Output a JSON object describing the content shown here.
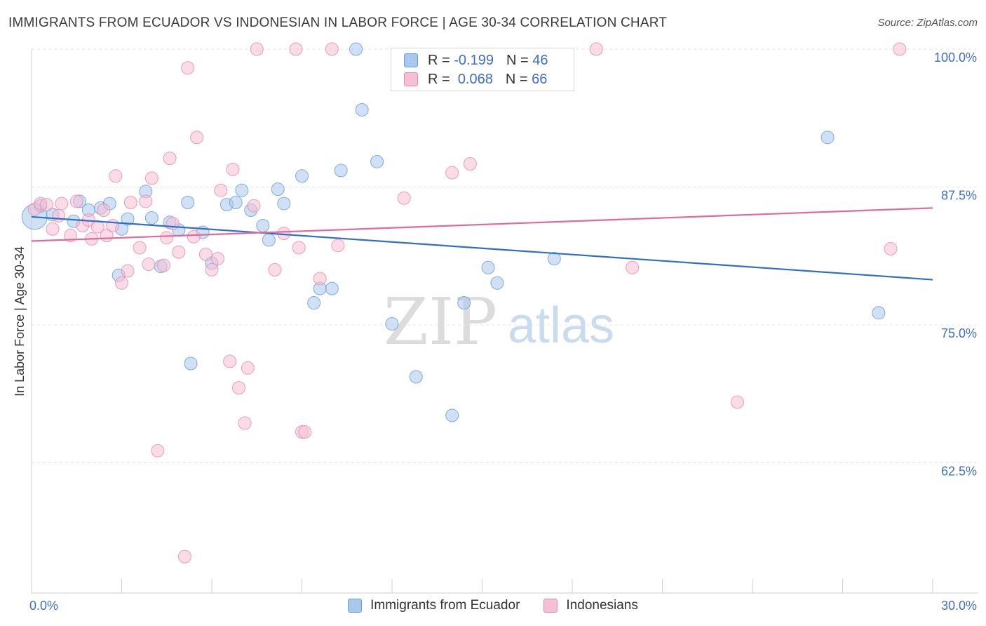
{
  "header": {
    "title": "IMMIGRANTS FROM ECUADOR VS INDONESIAN IN LABOR FORCE | AGE 30-34 CORRELATION CHART",
    "source": "Source: ZipAtlas.com"
  },
  "watermark": {
    "zip": "ZIP",
    "atlas": "atlas"
  },
  "legend_top": {
    "rows": [
      {
        "r_label": "R =",
        "r_value": "-0.199",
        "n_label": "N =",
        "n_value": "46",
        "color": "#a9c8ee",
        "stroke": "#6a9fd8"
      },
      {
        "r_label": "R =",
        "r_value": "0.068",
        "n_label": "N =",
        "n_value": "66",
        "color": "#f6bfd3",
        "stroke": "#e78cab"
      }
    ]
  },
  "legend_bottom": {
    "items": [
      {
        "label": "Immigrants from Ecuador",
        "color": "#a9c8ee",
        "stroke": "#6a9fd8"
      },
      {
        "label": "Indonesians",
        "color": "#f6bfd3",
        "stroke": "#e78cab"
      }
    ]
  },
  "chart_data": {
    "type": "scatter",
    "title": "IMMIGRANTS FROM ECUADOR VS INDONESIAN IN LABOR FORCE | AGE 30-34 CORRELATION CHART",
    "xlabel": "",
    "ylabel": "In Labor Force | Age 30-34",
    "xlim": [
      0,
      30
    ],
    "ylim": [
      50.7,
      100
    ],
    "x_tick_labels": [
      "0.0%",
      "30.0%"
    ],
    "y_ticks": [
      62.5,
      75.0,
      87.5,
      100.0
    ],
    "y_tick_labels": [
      "62.5%",
      "75.0%",
      "87.5%",
      "100.0%"
    ],
    "grid": "horizontal-dashed",
    "legend_position": "top-center",
    "colors": {
      "ecuador": "#6a9fd8",
      "ecuador_fill": "#a9c8ee",
      "indonesian": "#e78cab",
      "indonesian_fill": "#f6bfd3",
      "ecuador_line": "#2f6fcc",
      "indonesian_line": "#e06a9a",
      "axis_text": "#3d6fc6"
    },
    "series": [
      {
        "name": "Immigrants from Ecuador",
        "trend": [
          [
            0,
            84.8
          ],
          [
            30,
            79.1
          ]
        ],
        "points": [
          [
            0.1,
            84.8,
            18
          ],
          [
            0.3,
            85.8,
            9
          ],
          [
            0.7,
            85.0,
            9
          ],
          [
            1.4,
            84.4,
            9
          ],
          [
            1.6,
            86.2,
            9
          ],
          [
            1.9,
            85.4,
            9
          ],
          [
            2.3,
            85.6,
            9
          ],
          [
            2.6,
            86.0,
            9
          ],
          [
            3.2,
            84.6,
            9
          ],
          [
            3.0,
            83.7,
            9
          ],
          [
            2.9,
            79.5,
            9
          ],
          [
            3.8,
            87.1,
            9
          ],
          [
            4.0,
            84.7,
            9
          ],
          [
            4.3,
            80.3,
            9
          ],
          [
            4.6,
            84.3,
            9
          ],
          [
            4.9,
            83.6,
            9
          ],
          [
            5.2,
            86.1,
            9
          ],
          [
            5.3,
            71.5,
            9
          ],
          [
            5.7,
            83.4,
            9
          ],
          [
            6.0,
            80.6,
            9
          ],
          [
            6.5,
            85.9,
            9
          ],
          [
            6.8,
            86.1,
            9
          ],
          [
            7.0,
            87.2,
            9
          ],
          [
            7.3,
            85.4,
            9
          ],
          [
            7.7,
            84.0,
            9
          ],
          [
            7.9,
            82.7,
            9
          ],
          [
            8.2,
            87.3,
            9
          ],
          [
            8.4,
            86.0,
            9
          ],
          [
            9.0,
            88.5,
            9
          ],
          [
            9.4,
            77.0,
            9
          ],
          [
            9.6,
            78.3,
            9
          ],
          [
            10.0,
            78.3,
            9
          ],
          [
            10.3,
            89.0,
            9
          ],
          [
            10.8,
            100.0,
            9
          ],
          [
            11.0,
            94.5,
            9
          ],
          [
            11.5,
            89.8,
            9
          ],
          [
            12.0,
            75.1,
            9
          ],
          [
            12.8,
            70.3,
            9
          ],
          [
            14.0,
            66.8,
            9
          ],
          [
            14.4,
            77.0,
            9
          ],
          [
            15.2,
            80.2,
            9
          ],
          [
            15.5,
            78.8,
            9
          ],
          [
            17.4,
            81.0,
            9
          ],
          [
            26.5,
            92.0,
            9
          ],
          [
            28.2,
            76.1,
            9
          ]
        ]
      },
      {
        "name": "Indonesians",
        "trend": [
          [
            0,
            82.6
          ],
          [
            30,
            85.6
          ]
        ],
        "points": [
          [
            0.1,
            85.5,
            9
          ],
          [
            0.3,
            86.0,
            9
          ],
          [
            0.5,
            85.9,
            9
          ],
          [
            0.7,
            83.7,
            9
          ],
          [
            0.9,
            84.9,
            9
          ],
          [
            1.0,
            86.0,
            9
          ],
          [
            1.3,
            83.1,
            9
          ],
          [
            1.5,
            86.2,
            9
          ],
          [
            1.7,
            84.0,
            9
          ],
          [
            1.9,
            84.5,
            9
          ],
          [
            2.0,
            82.8,
            9
          ],
          [
            2.2,
            83.9,
            9
          ],
          [
            2.4,
            85.4,
            9
          ],
          [
            2.5,
            83.1,
            9
          ],
          [
            2.7,
            84.0,
            9
          ],
          [
            2.8,
            88.5,
            9
          ],
          [
            3.0,
            78.8,
            9
          ],
          [
            3.2,
            79.9,
            9
          ],
          [
            3.3,
            86.1,
            9
          ],
          [
            3.6,
            82.0,
            9
          ],
          [
            3.8,
            86.2,
            9
          ],
          [
            3.9,
            80.5,
            9
          ],
          [
            4.0,
            88.3,
            9
          ],
          [
            4.2,
            63.6,
            9
          ],
          [
            4.4,
            80.4,
            9
          ],
          [
            4.5,
            82.9,
            9
          ],
          [
            4.6,
            90.1,
            9
          ],
          [
            4.7,
            84.2,
            9
          ],
          [
            4.9,
            81.6,
            9
          ],
          [
            5.1,
            54.0,
            9
          ],
          [
            5.2,
            98.3,
            9
          ],
          [
            5.4,
            83.0,
            9
          ],
          [
            5.5,
            92.0,
            9
          ],
          [
            5.8,
            81.4,
            9
          ],
          [
            6.0,
            80.0,
            9
          ],
          [
            6.2,
            81.0,
            9
          ],
          [
            6.3,
            87.2,
            9
          ],
          [
            6.6,
            71.7,
            9
          ],
          [
            6.7,
            89.1,
            9
          ],
          [
            6.9,
            69.3,
            9
          ],
          [
            7.1,
            66.1,
            9
          ],
          [
            7.2,
            71.1,
            9
          ],
          [
            7.4,
            85.8,
            9
          ],
          [
            7.5,
            100.0,
            9
          ],
          [
            8.1,
            80.0,
            9
          ],
          [
            8.4,
            83.3,
            9
          ],
          [
            8.8,
            100.0,
            9
          ],
          [
            8.9,
            82.0,
            9
          ],
          [
            9.0,
            65.3,
            9
          ],
          [
            9.1,
            65.3,
            9
          ],
          [
            9.6,
            79.2,
            9
          ],
          [
            10.0,
            100.0,
            9
          ],
          [
            10.2,
            82.2,
            9
          ],
          [
            12.4,
            86.5,
            9
          ],
          [
            14.0,
            88.8,
            9
          ],
          [
            14.6,
            89.6,
            9
          ],
          [
            18.8,
            100.0,
            9
          ],
          [
            20.0,
            80.2,
            9
          ],
          [
            23.5,
            68.0,
            9
          ],
          [
            28.6,
            81.9,
            9
          ],
          [
            28.9,
            100.0,
            9
          ]
        ]
      }
    ]
  }
}
